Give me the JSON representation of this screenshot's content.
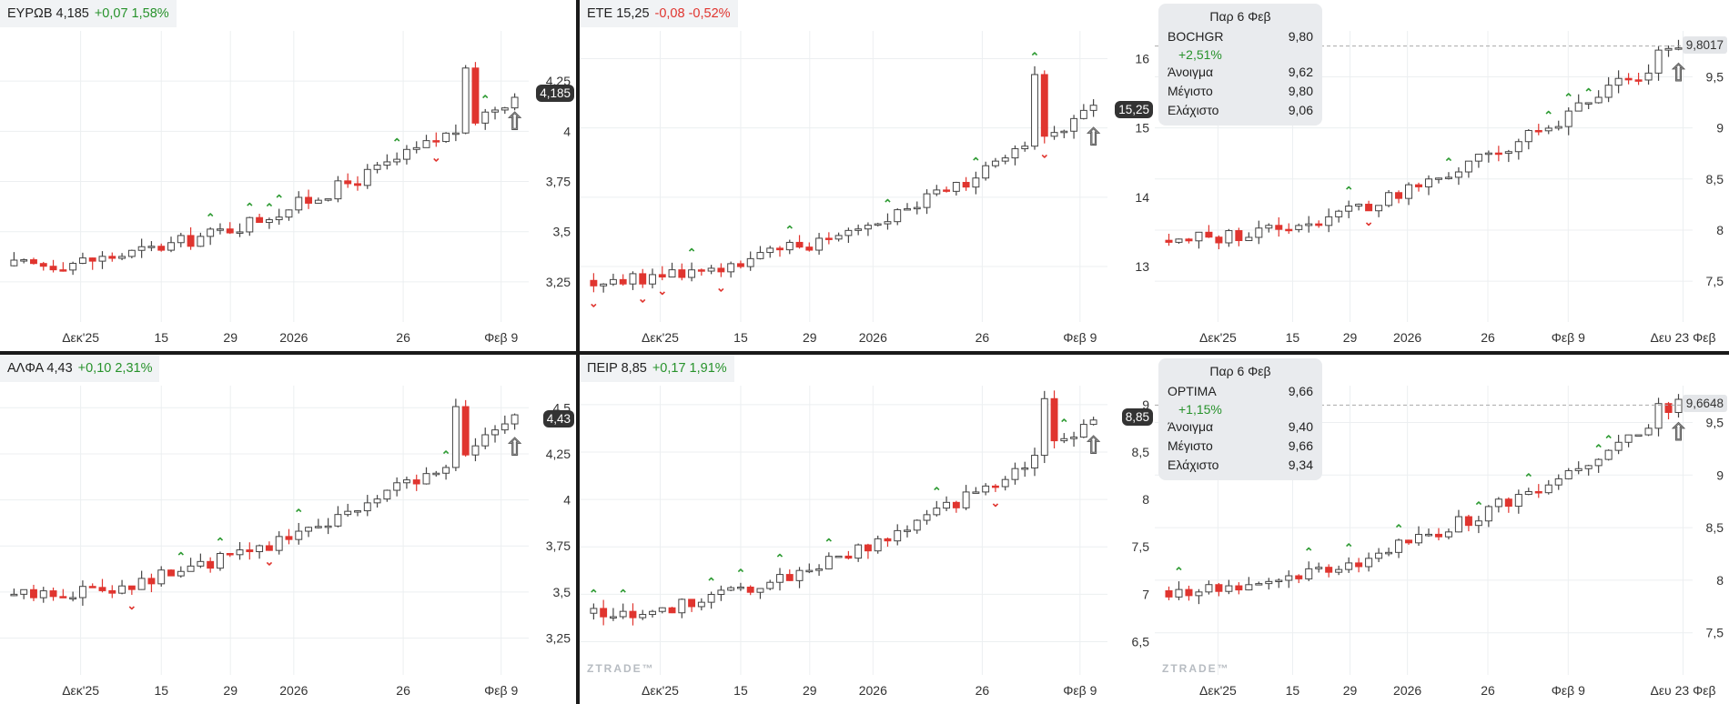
{
  "colors": {
    "up": "#ffffff",
    "down": "#e0352f",
    "neutral": "#555555",
    "signal_up": "#2e9b33",
    "signal_down": "#e0352f",
    "grid": "#eceff1"
  },
  "chart_data": [
    {
      "type": "candlestick",
      "symbol": "ΕΥΡΩΒ",
      "price": "4,185",
      "change": "+0,07",
      "change_pct": "1,58%",
      "direction": "up",
      "y_ticks": [
        "3,25",
        "3,5",
        "3,75",
        "4",
        "4,25"
      ],
      "ylim": [
        3.05,
        4.5
      ],
      "price_value": 4.185,
      "price_label": "4,185",
      "x_ticks": [
        "Δεκ'25",
        "15",
        "29",
        "2026",
        "26",
        "Φεβ 9"
      ],
      "start": 3.33,
      "end": 4.18,
      "peak_index": 46,
      "peak": 4.28
    },
    {
      "type": "candlestick",
      "symbol": "ΕΤΕ",
      "price": "15,25",
      "change": "-0,08",
      "change_pct": "-0,52%",
      "direction": "down",
      "y_ticks": [
        "13",
        "14",
        "15",
        "16"
      ],
      "ylim": [
        12.2,
        16.4
      ],
      "price_value": 15.25,
      "price_label": "15,25",
      "x_ticks": [
        "Δεκ'25",
        "15",
        "29",
        "2026",
        "26",
        "Φεβ 9"
      ],
      "start": 12.8,
      "end": 15.25,
      "peak_index": 45,
      "peak": 15.85
    },
    {
      "type": "candlestick",
      "symbol": "BOCHGR",
      "price": "9,80",
      "change_pct": "+2,51%",
      "direction": "up",
      "tooltip": {
        "date": "Παρ 6 Φεβ",
        "open_label": "Άνοιγμα",
        "open": "9,62",
        "high_label": "Μέγιστο",
        "high": "9,80",
        "low_label": "Ελάχιστο",
        "low": "9,06"
      },
      "y_ticks": [
        "7,5",
        "8",
        "8,5",
        "9",
        "9,5"
      ],
      "ylim": [
        7.1,
        9.95
      ],
      "price_value": 9.8017,
      "price_label": "9,8017",
      "x_ticks": [
        "Δεκ'25",
        "15",
        "29",
        "2026",
        "26",
        "Φεβ 9",
        "Δευ 23 Φεβ"
      ],
      "start": 7.9,
      "end": 9.8,
      "peak_index": 49,
      "peak": 9.8
    },
    {
      "type": "candlestick",
      "symbol": "ΑΛΦΑ",
      "price": "4,43",
      "change": "+0,10",
      "change_pct": "2,31%",
      "direction": "up",
      "y_ticks": [
        "3,25",
        "3,5",
        "3,75",
        "4",
        "4,25",
        "4,5"
      ],
      "ylim": [
        3.05,
        4.62
      ],
      "price_value": 4.43,
      "price_label": "4,43",
      "x_ticks": [
        "Δεκ'25",
        "15",
        "29",
        "2026",
        "26",
        "Φεβ 9"
      ],
      "start": 3.48,
      "end": 4.43,
      "peak_index": 45,
      "peak": 4.48
    },
    {
      "type": "candlestick",
      "symbol": "ΠΕΙΡ",
      "price": "8,85",
      "change": "+0,17",
      "change_pct": "1,91%",
      "direction": "up",
      "watermark": "ZTRADE™",
      "y_ticks": [
        "6,5",
        "7",
        "7,5",
        "8",
        "8,5",
        "9"
      ],
      "ylim": [
        6.15,
        9.2
      ],
      "price_value": 8.85,
      "price_label": "8,85",
      "x_ticks": [
        "Δεκ'25",
        "15",
        "29",
        "2026",
        "26",
        "Φεβ 9"
      ],
      "start": 6.8,
      "end": 8.85,
      "peak_index": 46,
      "peak": 9.0
    },
    {
      "type": "candlestick",
      "symbol": "OPTIMA",
      "price": "9,66",
      "change_pct": "+1,15%",
      "direction": "up",
      "watermark": "ZTRADE™",
      "tooltip": {
        "date": "Παρ 6 Φεβ",
        "open_label": "Άνοιγμα",
        "open": "9,40",
        "high_label": "Μέγιστο",
        "high": "9,66",
        "low_label": "Ελάχιστο",
        "low": "9,34"
      },
      "y_ticks": [
        "7,5",
        "8",
        "8,5",
        "9",
        "9,5"
      ],
      "ylim": [
        7.1,
        9.85
      ],
      "price_value": 9.6648,
      "price_label": "9,6648",
      "x_ticks": [
        "Δεκ'25",
        "15",
        "29",
        "2026",
        "26",
        "Φεβ 9",
        "Δευ 23 Φεβ"
      ],
      "start": 7.9,
      "end": 9.66,
      "peak_index": 49,
      "peak": 9.66
    }
  ]
}
